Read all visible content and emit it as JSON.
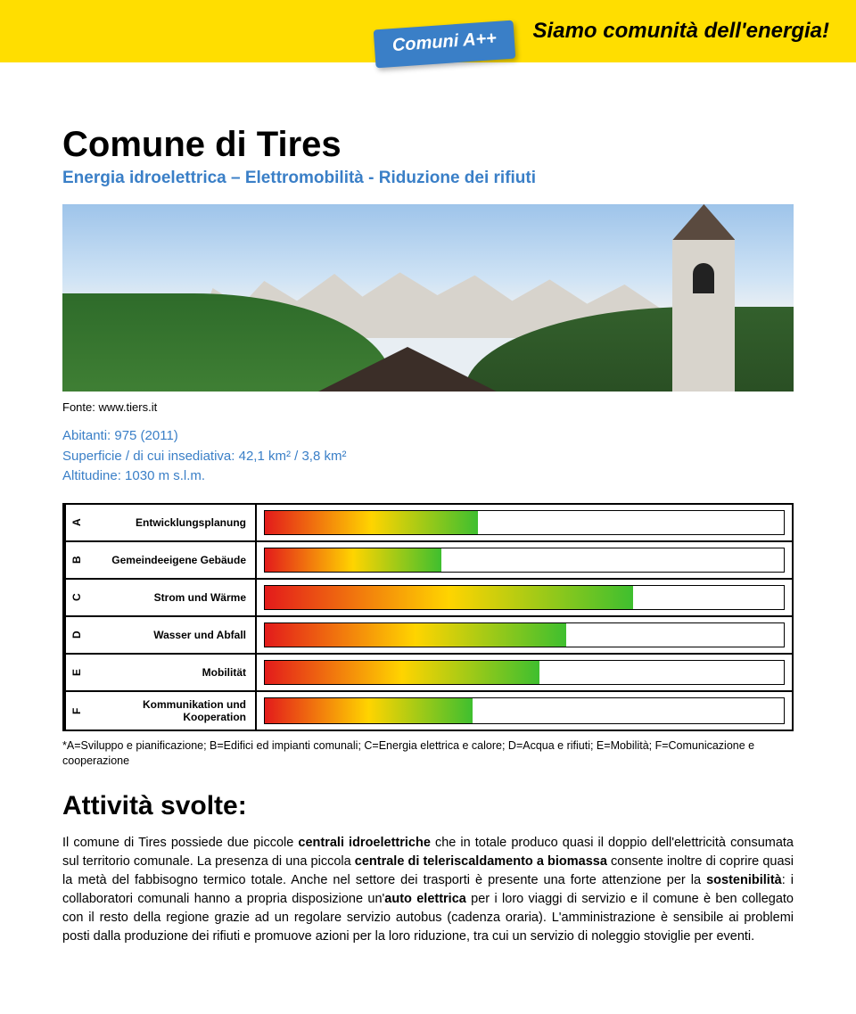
{
  "banner": {
    "badge": "Comuni A++",
    "slogan": "Siamo comunità dell'energia!",
    "bg_color": "#ffde00",
    "badge_color": "#3a7fc7"
  },
  "title": "Comune di Tires",
  "subtitle": "Energia idroelettrica – Elettromobilità - Riduzione dei rifiuti",
  "photo_caption": "Fonte: www.tiers.it",
  "meta": {
    "line1": "Abitanti: 975 (2011)",
    "line2": "Superficie / di cui insediativa: 42,1 km² / 3,8 km²",
    "line3": "Altitudine: 1030 m s.l.m."
  },
  "chart": {
    "type": "bar",
    "max_pct": 100,
    "rows": [
      {
        "letter": "A",
        "label": "Entwicklungsplanung",
        "value_pct": 41
      },
      {
        "letter": "B",
        "label": "Gemeindeeigene Gebäude",
        "value_pct": 34
      },
      {
        "letter": "C",
        "label": "Strom und Wärme",
        "value_pct": 71
      },
      {
        "letter": "D",
        "label": "Wasser und Abfall",
        "value_pct": 58
      },
      {
        "letter": "E",
        "label": "Mobilität",
        "value_pct": 53
      },
      {
        "letter": "F",
        "label": "Kommunikation und Kooperation",
        "value_pct": 40
      }
    ],
    "gradient_stops": [
      "#e31b1b",
      "#ffd400",
      "#3fbf2f"
    ]
  },
  "legend": "*A=Sviluppo e pianificazione; B=Edifici ed impianti comunali; C=Energia elettrica e calore; D=Acqua e rifiuti; E=Mobilità; F=Comunicazione e cooperazione",
  "activities_heading": "Attività svolte:",
  "body": {
    "p1a": "Il comune di Tires possiede due piccole ",
    "b1": "centrali idroelettriche",
    "p1b": " che in totale produco quasi il doppio dell'elettricità consumata sul territorio comunale. La presenza di una piccola ",
    "b2": "centrale di teleriscaldamento a biomassa",
    "p1c": " consente inoltre di coprire quasi la metà del fabbisogno termico totale. Anche nel settore dei trasporti è presente una forte attenzione per la ",
    "b3": "sostenibilità",
    "p1d": ": i collaboratori comunali hanno a propria disposizione un'",
    "b4": "auto elettrica",
    "p1e": " per i loro viaggi di servizio e il comune è ben collegato con il resto della regione grazie ad un regolare servizio autobus (cadenza oraria). L'amministrazione è sensibile ai problemi posti dalla produzione dei rifiuti e promuove azioni per la loro riduzione, tra cui un servizio di noleggio stoviglie per eventi."
  }
}
